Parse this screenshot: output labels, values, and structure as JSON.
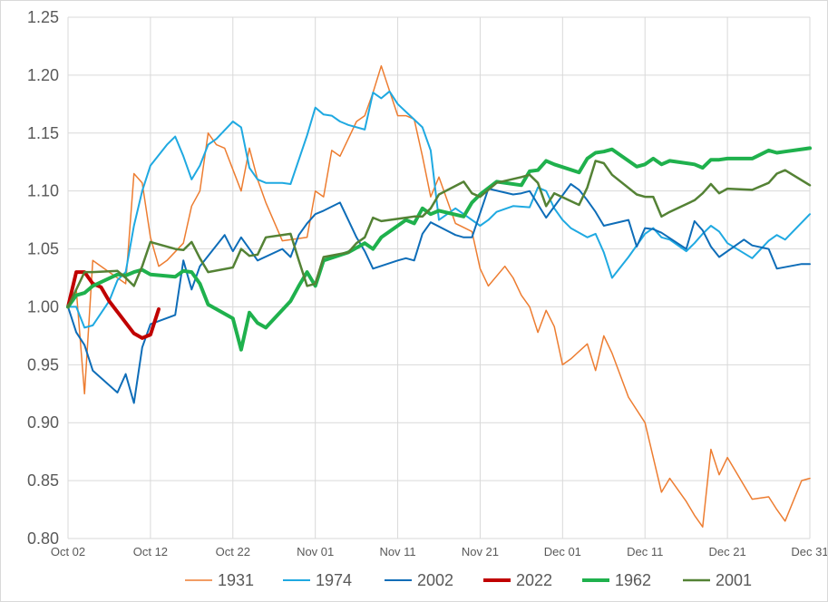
{
  "chart_data": {
    "type": "line",
    "title": "",
    "xlabel": "",
    "ylabel": "",
    "ylim": [
      0.8,
      1.25
    ],
    "yticks": [
      "0.80",
      "0.85",
      "0.90",
      "0.95",
      "1.00",
      "1.05",
      "1.10",
      "1.15",
      "1.20",
      "1.25"
    ],
    "xlim": [
      "Oct 02",
      "Dec 31"
    ],
    "xticks": [
      "Oct 02",
      "Oct 12",
      "Oct 22",
      "Nov 01",
      "Nov 11",
      "Nov 21",
      "Dec 01",
      "Dec 11",
      "Dec 21",
      "Dec 31"
    ],
    "grid": true,
    "legend": "bottom",
    "series": [
      {
        "name": "1931",
        "color": "#ED7D31",
        "width": 1.5,
        "x": [
          "Oct 02",
          "Oct 03",
          "Oct 04",
          "Oct 05",
          "Oct 06",
          "Oct 07",
          "Oct 09",
          "Oct 10",
          "Oct 11",
          "Oct 12",
          "Oct 13",
          "Oct 14",
          "Oct 16",
          "Oct 17",
          "Oct 18",
          "Oct 19",
          "Oct 20",
          "Oct 21",
          "Oct 23",
          "Oct 24",
          "Oct 25",
          "Oct 26",
          "Oct 28",
          "Oct 31",
          "Nov 01",
          "Nov 02",
          "Nov 03",
          "Nov 04",
          "Nov 06",
          "Nov 07",
          "Nov 08",
          "Nov 09",
          "Nov 11",
          "Nov 12",
          "Nov 13",
          "Nov 14",
          "Nov 15",
          "Nov 16",
          "Nov 18",
          "Nov 20",
          "Nov 21",
          "Nov 22",
          "Nov 24",
          "Nov 25",
          "Nov 26",
          "Nov 27",
          "Nov 28",
          "Nov 29",
          "Nov 30",
          "Dec 01",
          "Dec 02",
          "Dec 04",
          "Dec 05",
          "Dec 06",
          "Dec 07",
          "Dec 09",
          "Dec 11",
          "Dec 12",
          "Dec 13",
          "Dec 14",
          "Dec 16",
          "Dec 17",
          "Dec 18",
          "Dec 19",
          "Dec 20",
          "Dec 21",
          "Dec 24",
          "Dec 26",
          "Dec 27",
          "Dec 28",
          "Dec 30",
          "Dec 31"
        ],
        "y": [
          1.0,
          1.015,
          0.925,
          1.04,
          1.035,
          1.03,
          1.02,
          1.115,
          1.107,
          1.06,
          1.035,
          1.04,
          1.055,
          1.087,
          1.1,
          1.15,
          1.14,
          1.137,
          1.1,
          1.137,
          1.11,
          1.09,
          1.057,
          1.06,
          1.1,
          1.095,
          1.135,
          1.13,
          1.16,
          1.165,
          1.185,
          1.208,
          1.165,
          1.165,
          1.162,
          1.13,
          1.095,
          1.112,
          1.072,
          1.065,
          1.033,
          1.018,
          1.035,
          1.025,
          1.01,
          1.0,
          0.978,
          0.997,
          0.983,
          0.95,
          0.955,
          0.968,
          0.945,
          0.975,
          0.96,
          0.922,
          0.9,
          0.87,
          0.84,
          0.852,
          0.832,
          0.82,
          0.81,
          0.877,
          0.855,
          0.87,
          0.834,
          0.836,
          0.825,
          0.815,
          0.85,
          0.852
        ]
      },
      {
        "name": "1974",
        "color": "#1FA9E1",
        "width": 2,
        "x": [
          "Oct 02",
          "Oct 03",
          "Oct 04",
          "Oct 05",
          "Oct 07",
          "Oct 08",
          "Oct 09",
          "Oct 10",
          "Oct 11",
          "Oct 12",
          "Oct 14",
          "Oct 15",
          "Oct 16",
          "Oct 17",
          "Oct 18",
          "Oct 19",
          "Oct 20",
          "Oct 22",
          "Oct 23",
          "Oct 24",
          "Oct 25",
          "Oct 26",
          "Oct 28",
          "Oct 29",
          "Oct 31",
          "Nov 01",
          "Nov 02",
          "Nov 03",
          "Nov 04",
          "Nov 05",
          "Nov 07",
          "Nov 08",
          "Nov 09",
          "Nov 10",
          "Nov 11",
          "Nov 14",
          "Nov 15",
          "Nov 16",
          "Nov 18",
          "Nov 19",
          "Nov 21",
          "Nov 22",
          "Nov 23",
          "Nov 25",
          "Nov 27",
          "Nov 28",
          "Nov 29",
          "Nov 30",
          "Dec 01",
          "Dec 02",
          "Dec 04",
          "Dec 05",
          "Dec 06",
          "Dec 07",
          "Dec 09",
          "Dec 11",
          "Dec 12",
          "Dec 13",
          "Dec 14",
          "Dec 16",
          "Dec 17",
          "Dec 18",
          "Dec 19",
          "Dec 20",
          "Dec 21",
          "Dec 24",
          "Dec 26",
          "Dec 27",
          "Dec 28",
          "Dec 31"
        ],
        "y": [
          1.0,
          1.0,
          0.982,
          0.984,
          1.005,
          1.023,
          1.03,
          1.07,
          1.1,
          1.122,
          1.14,
          1.147,
          1.13,
          1.11,
          1.122,
          1.14,
          1.145,
          1.16,
          1.155,
          1.12,
          1.11,
          1.107,
          1.107,
          1.106,
          1.148,
          1.172,
          1.166,
          1.165,
          1.16,
          1.157,
          1.153,
          1.185,
          1.18,
          1.186,
          1.175,
          1.155,
          1.135,
          1.075,
          1.085,
          1.08,
          1.07,
          1.075,
          1.082,
          1.087,
          1.086,
          1.103,
          1.1,
          1.085,
          1.075,
          1.068,
          1.06,
          1.063,
          1.047,
          1.025,
          1.043,
          1.063,
          1.068,
          1.06,
          1.058,
          1.048,
          1.055,
          1.063,
          1.07,
          1.065,
          1.055,
          1.042,
          1.057,
          1.062,
          1.058,
          1.08
        ]
      },
      {
        "name": "2002",
        "color": "#0E6DB8",
        "width": 2,
        "x": [
          "Oct 02",
          "Oct 03",
          "Oct 04",
          "Oct 05",
          "Oct 08",
          "Oct 09",
          "Oct 10",
          "Oct 11",
          "Oct 12",
          "Oct 15",
          "Oct 16",
          "Oct 17",
          "Oct 18",
          "Oct 21",
          "Oct 22",
          "Oct 23",
          "Oct 24",
          "Oct 25",
          "Oct 28",
          "Oct 29",
          "Oct 30",
          "Oct 31",
          "Nov 01",
          "Nov 02",
          "Nov 04",
          "Nov 05",
          "Nov 06",
          "Nov 07",
          "Nov 08",
          "Nov 11",
          "Nov 12",
          "Nov 13",
          "Nov 14",
          "Nov 15",
          "Nov 18",
          "Nov 19",
          "Nov 20",
          "Nov 22",
          "Nov 25",
          "Nov 26",
          "Nov 27",
          "Nov 29",
          "Dec 02",
          "Dec 03",
          "Dec 04",
          "Dec 05",
          "Dec 06",
          "Dec 09",
          "Dec 10",
          "Dec 11",
          "Dec 12",
          "Dec 13",
          "Dec 16",
          "Dec 17",
          "Dec 18",
          "Dec 19",
          "Dec 20",
          "Dec 23",
          "Dec 24",
          "Dec 26",
          "Dec 27",
          "Dec 30",
          "Dec 31"
        ],
        "y": [
          1.0,
          0.978,
          0.967,
          0.945,
          0.926,
          0.942,
          0.917,
          0.965,
          0.985,
          0.993,
          1.04,
          1.015,
          1.035,
          1.062,
          1.048,
          1.06,
          1.05,
          1.04,
          1.05,
          1.043,
          1.062,
          1.072,
          1.08,
          1.083,
          1.09,
          1.075,
          1.06,
          1.048,
          1.033,
          1.04,
          1.042,
          1.04,
          1.063,
          1.073,
          1.062,
          1.06,
          1.06,
          1.102,
          1.097,
          1.098,
          1.1,
          1.077,
          1.106,
          1.101,
          1.092,
          1.082,
          1.07,
          1.075,
          1.052,
          1.068,
          1.067,
          1.064,
          1.05,
          1.074,
          1.066,
          1.052,
          1.043,
          1.058,
          1.053,
          1.05,
          1.033,
          1.037,
          1.037
        ]
      },
      {
        "name": "2022",
        "color": "#C00000",
        "width": 4,
        "x": [
          "Oct 02",
          "Oct 03",
          "Oct 04",
          "Oct 05",
          "Oct 06",
          "Oct 07",
          "Oct 10",
          "Oct 11",
          "Oct 12",
          "Oct 13"
        ],
        "y": [
          1.0,
          1.03,
          1.03,
          1.02,
          1.017,
          1.005,
          0.977,
          0.973,
          0.976,
          0.998
        ]
      },
      {
        "name": "1962",
        "color": "#1FB14D",
        "width": 4,
        "x": [
          "Oct 02",
          "Oct 03",
          "Oct 04",
          "Oct 05",
          "Oct 08",
          "Oct 09",
          "Oct 10",
          "Oct 11",
          "Oct 12",
          "Oct 15",
          "Oct 16",
          "Oct 17",
          "Oct 18",
          "Oct 19",
          "Oct 22",
          "Oct 23",
          "Oct 24",
          "Oct 25",
          "Oct 26",
          "Oct 29",
          "Oct 30",
          "Oct 31",
          "Nov 01",
          "Nov 02",
          "Nov 05",
          "Nov 07",
          "Nov 08",
          "Nov 09",
          "Nov 12",
          "Nov 13",
          "Nov 14",
          "Nov 15",
          "Nov 16",
          "Nov 19",
          "Nov 20",
          "Nov 21",
          "Nov 23",
          "Nov 26",
          "Nov 27",
          "Nov 28",
          "Nov 29",
          "Nov 30",
          "Dec 03",
          "Dec 04",
          "Dec 05",
          "Dec 06",
          "Dec 07",
          "Dec 10",
          "Dec 11",
          "Dec 12",
          "Dec 13",
          "Dec 14",
          "Dec 17",
          "Dec 18",
          "Dec 19",
          "Dec 20",
          "Dec 21",
          "Dec 24",
          "Dec 26",
          "Dec 27",
          "Dec 28",
          "Dec 31"
        ],
        "y": [
          1.0,
          1.01,
          1.012,
          1.018,
          1.028,
          1.027,
          1.03,
          1.032,
          1.028,
          1.026,
          1.031,
          1.03,
          1.02,
          1.002,
          0.99,
          0.963,
          0.995,
          0.986,
          0.982,
          1.005,
          1.018,
          1.03,
          1.018,
          1.04,
          1.047,
          1.055,
          1.05,
          1.06,
          1.075,
          1.072,
          1.085,
          1.08,
          1.083,
          1.078,
          1.09,
          1.097,
          1.108,
          1.105,
          1.117,
          1.118,
          1.126,
          1.123,
          1.116,
          1.128,
          1.133,
          1.134,
          1.136,
          1.121,
          1.123,
          1.128,
          1.123,
          1.126,
          1.123,
          1.12,
          1.127,
          1.127,
          1.128,
          1.128,
          1.135,
          1.133,
          1.134,
          1.137
        ]
      },
      {
        "name": "2001",
        "color": "#548235",
        "width": 2.5,
        "x": [
          "Oct 02",
          "Oct 03",
          "Oct 04",
          "Oct 05",
          "Oct 08",
          "Oct 09",
          "Oct 10",
          "Oct 11",
          "Oct 12",
          "Oct 15",
          "Oct 16",
          "Oct 17",
          "Oct 18",
          "Oct 19",
          "Oct 22",
          "Oct 23",
          "Oct 24",
          "Oct 25",
          "Oct 26",
          "Oct 29",
          "Oct 30",
          "Oct 31",
          "Nov 01",
          "Nov 02",
          "Nov 05",
          "Nov 06",
          "Nov 07",
          "Nov 08",
          "Nov 09",
          "Nov 12",
          "Nov 13",
          "Nov 14",
          "Nov 15",
          "Nov 16",
          "Nov 19",
          "Nov 20",
          "Nov 21",
          "Nov 23",
          "Nov 26",
          "Nov 27",
          "Nov 28",
          "Nov 29",
          "Nov 30",
          "Dec 03",
          "Dec 04",
          "Dec 05",
          "Dec 06",
          "Dec 07",
          "Dec 10",
          "Dec 11",
          "Dec 12",
          "Dec 13",
          "Dec 14",
          "Dec 17",
          "Dec 18",
          "Dec 19",
          "Dec 20",
          "Dec 21",
          "Dec 24",
          "Dec 26",
          "Dec 27",
          "Dec 28",
          "Dec 31"
        ],
        "y": [
          1.0,
          1.015,
          1.03,
          1.03,
          1.031,
          1.025,
          1.018,
          1.035,
          1.056,
          1.05,
          1.049,
          1.056,
          1.042,
          1.03,
          1.034,
          1.05,
          1.044,
          1.045,
          1.06,
          1.063,
          1.04,
          1.018,
          1.02,
          1.043,
          1.047,
          1.055,
          1.06,
          1.077,
          1.074,
          1.077,
          1.078,
          1.078,
          1.085,
          1.097,
          1.108,
          1.098,
          1.095,
          1.107,
          1.112,
          1.114,
          1.107,
          1.087,
          1.098,
          1.088,
          1.103,
          1.126,
          1.124,
          1.114,
          1.097,
          1.095,
          1.095,
          1.078,
          1.082,
          1.092,
          1.098,
          1.106,
          1.098,
          1.102,
          1.101,
          1.107,
          1.115,
          1.118,
          1.105
        ]
      }
    ]
  }
}
